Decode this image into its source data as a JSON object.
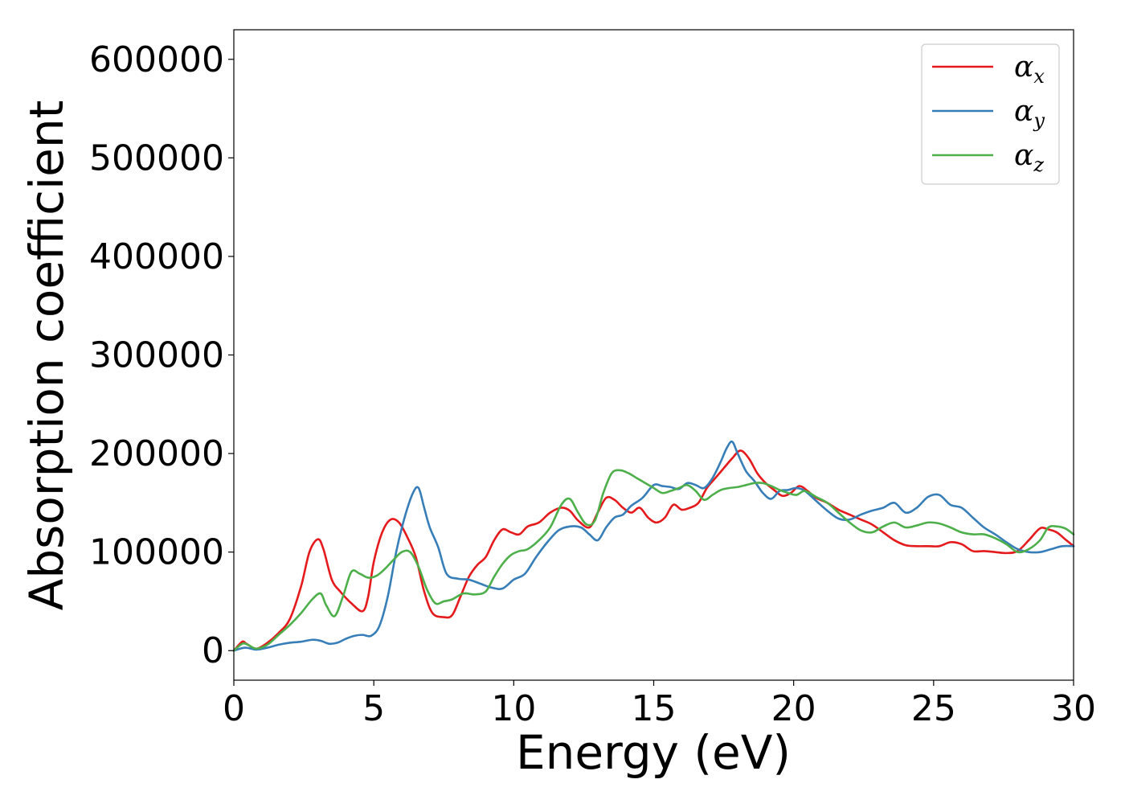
{
  "chart_data": {
    "type": "line",
    "title": "",
    "xlabel": "Energy (eV)",
    "ylabel": "Absorption coefficient",
    "xlim": [
      0,
      30
    ],
    "ylim": [
      -30000,
      630000
    ],
    "xticks": [
      0,
      5,
      10,
      15,
      20,
      25,
      30
    ],
    "yticks": [
      0,
      100000,
      200000,
      300000,
      400000,
      500000,
      600000
    ],
    "grid": false,
    "legend_position": "top-right",
    "series": [
      {
        "name": "α_x",
        "legend_base": "α",
        "legend_sub": "x",
        "color": "#e41a1c",
        "x": [
          0,
          0.3,
          0.45,
          0.8,
          1.2,
          1.6,
          2.0,
          2.4,
          2.7,
          3.0,
          3.2,
          3.5,
          3.8,
          4.2,
          4.6,
          4.8,
          5.0,
          5.3,
          5.6,
          5.9,
          6.2,
          6.5,
          6.8,
          7.1,
          7.5,
          7.8,
          8.1,
          8.4,
          8.7,
          9.0,
          9.3,
          9.6,
          9.9,
          10.2,
          10.5,
          10.9,
          11.3,
          11.7,
          12.0,
          12.3,
          12.7,
          13.0,
          13.3,
          13.6,
          13.9,
          14.2,
          14.5,
          14.8,
          15.1,
          15.4,
          15.7,
          16.0,
          16.3,
          16.6,
          16.9,
          17.2,
          17.5,
          17.8,
          18.1,
          18.4,
          18.7,
          19.0,
          19.3,
          19.6,
          19.9,
          20.2,
          20.5,
          20.8,
          21.2,
          21.6,
          22.0,
          22.4,
          22.8,
          23.2,
          23.6,
          24.0,
          24.4,
          24.8,
          25.2,
          25.6,
          26.0,
          26.4,
          26.8,
          27.2,
          27.6,
          28.0,
          28.4,
          28.8,
          29.1,
          29.4,
          29.7,
          30.0
        ],
        "y": [
          0,
          9000,
          7000,
          2000,
          8000,
          18000,
          32000,
          65000,
          100000,
          113000,
          103000,
          72000,
          60000,
          48000,
          40000,
          55000,
          90000,
          120000,
          133000,
          130000,
          115000,
          95000,
          60000,
          38000,
          34000,
          36000,
          55000,
          75000,
          87000,
          95000,
          112000,
          123000,
          120000,
          118000,
          126000,
          130000,
          140000,
          145000,
          142000,
          132000,
          125000,
          140000,
          155000,
          153000,
          145000,
          140000,
          145000,
          135000,
          130000,
          135000,
          148000,
          143000,
          145000,
          150000,
          165000,
          175000,
          185000,
          195000,
          203000,
          195000,
          180000,
          170000,
          163000,
          157000,
          160000,
          167000,
          162000,
          155000,
          150000,
          143000,
          138000,
          133000,
          128000,
          120000,
          112000,
          107000,
          106000,
          106000,
          106000,
          110000,
          108000,
          101000,
          101000,
          100000,
          99000,
          101000,
          112000,
          124000,
          123000,
          120000,
          113000,
          106000
        ]
      },
      {
        "name": "α_y",
        "legend_base": "α",
        "legend_sub": "y",
        "color": "#377eb8",
        "x": [
          0,
          0.4,
          0.8,
          1.2,
          1.6,
          2.0,
          2.4,
          2.8,
          3.1,
          3.4,
          3.7,
          4.0,
          4.3,
          4.6,
          4.9,
          5.2,
          5.5,
          5.8,
          6.1,
          6.4,
          6.6,
          6.8,
          7.0,
          7.3,
          7.6,
          8.0,
          8.4,
          8.8,
          9.2,
          9.6,
          10.0,
          10.4,
          10.8,
          11.2,
          11.6,
          12.0,
          12.4,
          12.7,
          13.0,
          13.3,
          13.6,
          13.9,
          14.2,
          14.6,
          15.0,
          15.3,
          15.6,
          15.9,
          16.2,
          16.5,
          16.8,
          17.1,
          17.4,
          17.6,
          17.8,
          18.0,
          18.3,
          18.6,
          18.9,
          19.2,
          19.5,
          19.8,
          20.1,
          20.4,
          20.8,
          21.2,
          21.6,
          22.0,
          22.4,
          22.8,
          23.2,
          23.6,
          24.0,
          24.4,
          24.8,
          25.2,
          25.6,
          26.0,
          26.4,
          26.8,
          27.2,
          27.6,
          28.0,
          28.4,
          28.8,
          29.2,
          29.6,
          30.0
        ],
        "y": [
          0,
          3000,
          1000,
          3000,
          6000,
          8000,
          9000,
          11000,
          10000,
          7000,
          8000,
          12000,
          15000,
          16000,
          15000,
          25000,
          55000,
          100000,
          135000,
          160000,
          165000,
          145000,
          125000,
          105000,
          78000,
          73000,
          72000,
          68000,
          64000,
          63000,
          72000,
          78000,
          95000,
          110000,
          122000,
          126000,
          125000,
          118000,
          112000,
          125000,
          135000,
          138000,
          147000,
          155000,
          168000,
          167000,
          166000,
          164000,
          170000,
          168000,
          165000,
          175000,
          192000,
          205000,
          212000,
          200000,
          182000,
          172000,
          160000,
          154000,
          162000,
          163000,
          165000,
          162000,
          152000,
          142000,
          134000,
          133000,
          138000,
          142000,
          145000,
          150000,
          140000,
          145000,
          156000,
          158000,
          148000,
          145000,
          135000,
          125000,
          118000,
          110000,
          103000,
          100000,
          100000,
          103000,
          106000,
          106000
        ]
      },
      {
        "name": "α_z",
        "legend_base": "α",
        "legend_sub": "z",
        "color": "#4daf4a",
        "x": [
          0,
          0.3,
          0.5,
          0.8,
          1.2,
          1.6,
          2.0,
          2.4,
          2.8,
          3.1,
          3.3,
          3.6,
          3.9,
          4.2,
          4.5,
          4.8,
          5.1,
          5.4,
          5.7,
          6.0,
          6.3,
          6.6,
          6.9,
          7.2,
          7.5,
          7.8,
          8.2,
          8.6,
          9.0,
          9.3,
          9.6,
          9.9,
          10.2,
          10.5,
          10.9,
          11.3,
          11.7,
          12.0,
          12.3,
          12.6,
          12.9,
          13.2,
          13.5,
          13.8,
          14.1,
          14.4,
          14.7,
          15.0,
          15.3,
          15.6,
          15.9,
          16.2,
          16.5,
          16.8,
          17.1,
          17.4,
          17.7,
          18.0,
          18.3,
          18.6,
          18.9,
          19.2,
          19.5,
          19.8,
          20.1,
          20.4,
          20.8,
          21.2,
          21.6,
          22.0,
          22.4,
          22.8,
          23.2,
          23.6,
          24.0,
          24.4,
          24.8,
          25.2,
          25.6,
          26.0,
          26.4,
          26.8,
          27.2,
          27.6,
          28.0,
          28.4,
          28.8,
          29.1,
          29.4,
          29.7,
          30.0
        ],
        "y": [
          0,
          7000,
          6000,
          2000,
          6000,
          16000,
          26000,
          38000,
          52000,
          58000,
          46000,
          35000,
          55000,
          80000,
          78000,
          74000,
          76000,
          83000,
          92000,
          100000,
          100000,
          85000,
          62000,
          48000,
          50000,
          52000,
          58000,
          57000,
          60000,
          75000,
          88000,
          97000,
          101000,
          103000,
          112000,
          125000,
          148000,
          154000,
          140000,
          128000,
          132000,
          160000,
          180000,
          183000,
          180000,
          175000,
          170000,
          165000,
          160000,
          162000,
          165000,
          168000,
          162000,
          153000,
          158000,
          163000,
          165000,
          166000,
          168000,
          170000,
          170000,
          167000,
          163000,
          160000,
          158000,
          162000,
          156000,
          150000,
          140000,
          130000,
          122000,
          120000,
          126000,
          130000,
          125000,
          127000,
          130000,
          129000,
          125000,
          120000,
          118000,
          118000,
          114000,
          108000,
          100000,
          103000,
          112000,
          125000,
          126000,
          124000,
          118000
        ]
      }
    ]
  }
}
